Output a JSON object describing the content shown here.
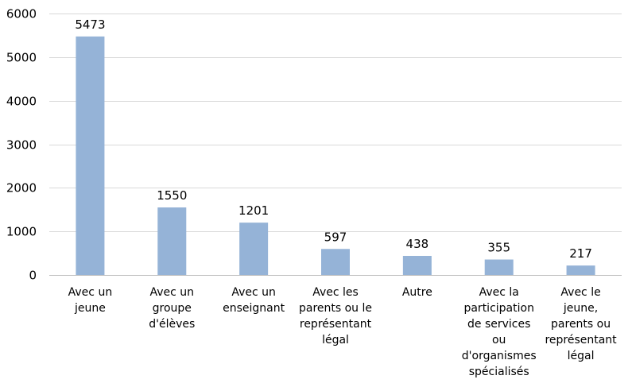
{
  "chart_data": {
    "type": "bar",
    "title": "",
    "xlabel": "",
    "ylabel": "",
    "categories": [
      [
        "Avec un",
        "jeune"
      ],
      [
        "Avec un",
        "groupe",
        "d'élèves"
      ],
      [
        "Avec un",
        "enseignant"
      ],
      [
        "Avec les",
        "parents ou le",
        "représentant",
        "légal"
      ],
      [
        "Autre"
      ],
      [
        "Avec la",
        "participation",
        "de services",
        "ou",
        "d'organismes",
        "spécialisés"
      ],
      [
        "Avec le",
        "jeune,",
        "parents ou",
        "représentant",
        "légal"
      ]
    ],
    "values": [
      5473,
      1550,
      1201,
      597,
      438,
      355,
      217
    ],
    "data_labels": [
      "5473",
      "1550",
      "1201",
      "597",
      "438",
      "355",
      "217"
    ],
    "yticks": [
      0,
      1000,
      2000,
      3000,
      4000,
      5000,
      6000
    ],
    "ytick_labels": [
      "0",
      "1000",
      "2000",
      "3000",
      "4000",
      "5000",
      "6000"
    ],
    "ylim": [
      0,
      6000
    ],
    "grid": true,
    "legend": "none",
    "bar_color": "#95B3D7"
  }
}
